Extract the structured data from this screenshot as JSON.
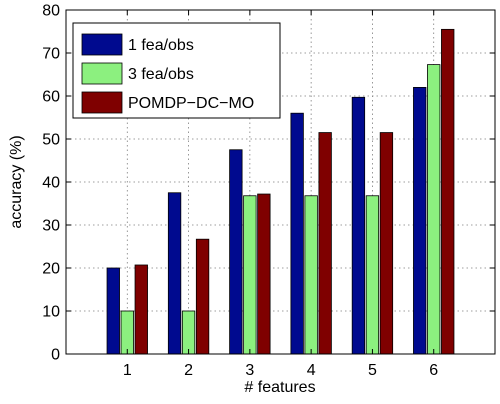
{
  "chart_data": {
    "type": "bar",
    "title": "",
    "xlabel": "# features",
    "ylabel": "accuracy (%)",
    "categories": [
      "1",
      "2",
      "3",
      "4",
      "5",
      "6"
    ],
    "ylim": [
      0,
      80
    ],
    "yticks": [
      "0",
      "10",
      "20",
      "30",
      "40",
      "50",
      "60",
      "70",
      "80"
    ],
    "grid": true,
    "legend_position": "top-left",
    "series": [
      {
        "name": "1 fea/obs",
        "color": "#000a8f",
        "values": [
          20,
          37.5,
          47.5,
          56,
          59.7,
          62
        ]
      },
      {
        "name": "3 fea/obs",
        "color": "#8cf07f",
        "values": [
          10,
          10,
          36.8,
          36.8,
          36.8,
          67.3
        ]
      },
      {
        "name": "POMDP−DC−MO",
        "color": "#7f0000",
        "values": [
          20.7,
          26.7,
          37.2,
          51.5,
          51.5,
          75.5
        ]
      }
    ]
  }
}
